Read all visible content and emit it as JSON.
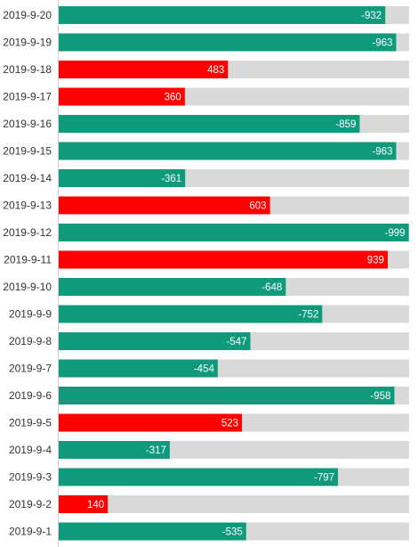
{
  "chart_data": {
    "type": "bar",
    "orientation": "horizontal",
    "categories": [
      "2019-9-20",
      "2019-9-19",
      "2019-9-18",
      "2019-9-17",
      "2019-9-16",
      "2019-9-15",
      "2019-9-14",
      "2019-9-13",
      "2019-9-12",
      "2019-9-11",
      "2019-9-10",
      "2019-9-9",
      "2019-9-8",
      "2019-9-7",
      "2019-9-6",
      "2019-9-5",
      "2019-9-4",
      "2019-9-3",
      "2019-9-2",
      "2019-9-1"
    ],
    "values": [
      -932,
      -963,
      483,
      360,
      -859,
      -963,
      -361,
      603,
      -999,
      939,
      -648,
      -752,
      -547,
      -454,
      -958,
      523,
      -317,
      -797,
      140,
      -535
    ],
    "max_abs": 1000,
    "colors": {
      "negative": "#0e9a7b",
      "positive": "#ff0000",
      "track": "#d9d9d9",
      "label_text": "#ffffff",
      "category_text": "#333333"
    },
    "title": "",
    "xlabel": "",
    "ylabel": "",
    "grid": false,
    "legend": "none"
  }
}
